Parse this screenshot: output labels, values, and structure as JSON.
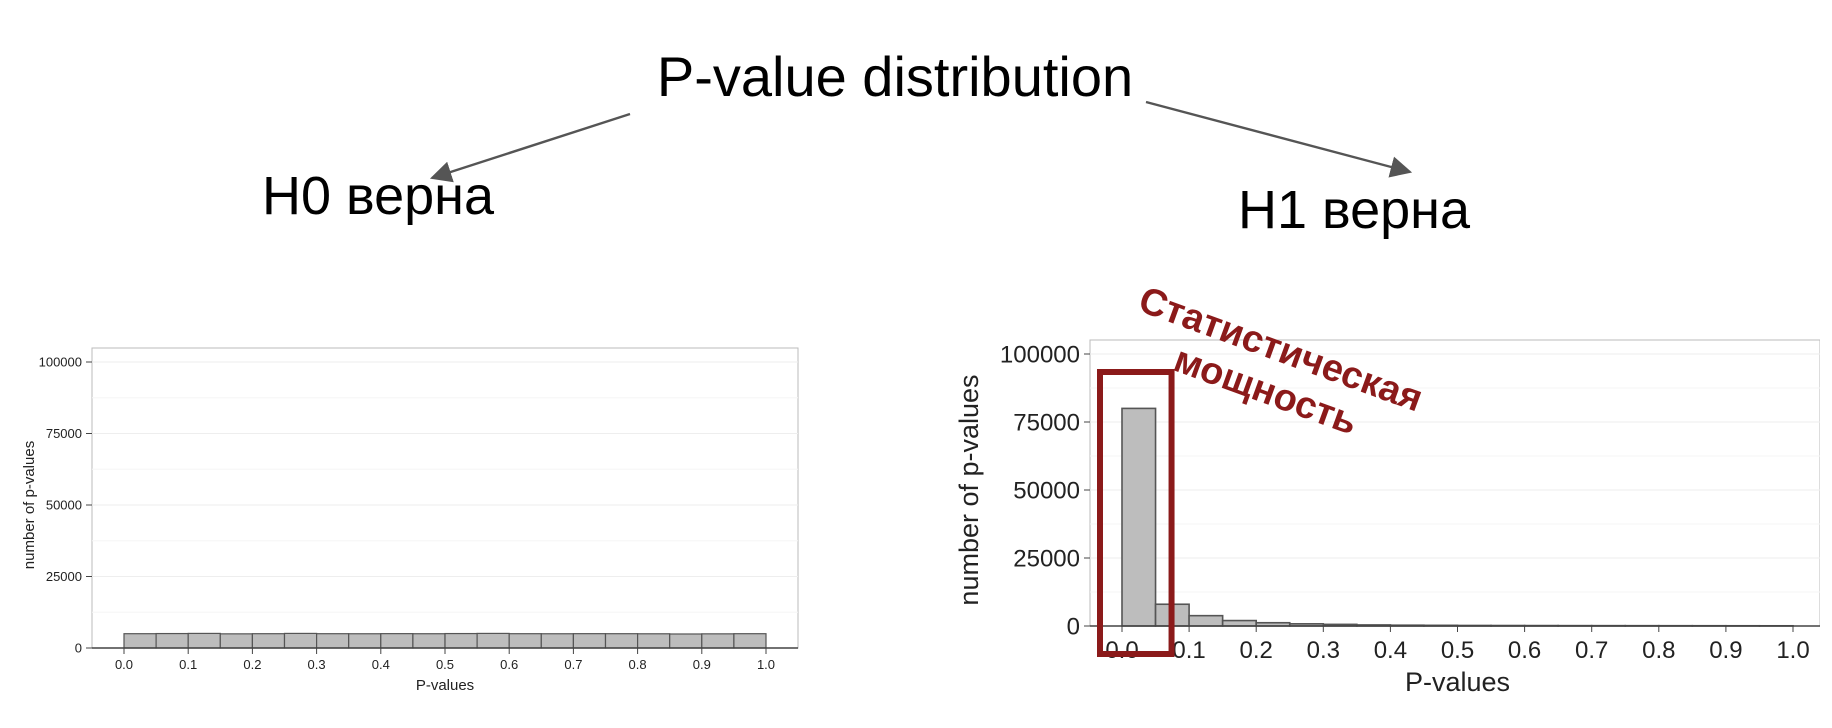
{
  "title": "P-value distribution",
  "h0_label": "H0 верна",
  "h1_label": "H1 верна",
  "annotation": {
    "line1": "Статистическая",
    "line2": "мощность",
    "color": "#8b1a1a"
  },
  "chart_data": [
    {
      "type": "bar",
      "xlabel": "P-values",
      "ylabel": "number of p-values",
      "xlim": [
        0.0,
        1.0
      ],
      "ylim": [
        0,
        100000
      ],
      "bin_width": 0.05,
      "x_ticks": [
        "0.0",
        "0.1",
        "0.2",
        "0.3",
        "0.4",
        "0.5",
        "0.6",
        "0.7",
        "0.8",
        "0.9",
        "1.0"
      ],
      "y_ticks": [
        "0",
        "25000",
        "50000",
        "75000",
        "100000"
      ],
      "bin_starts": [
        0.0,
        0.05,
        0.1,
        0.15,
        0.2,
        0.25,
        0.3,
        0.35,
        0.4,
        0.45,
        0.5,
        0.55,
        0.6,
        0.65,
        0.7,
        0.75,
        0.8,
        0.85,
        0.9,
        0.95
      ],
      "values": [
        5000,
        5050,
        5100,
        4950,
        5000,
        5100,
        5000,
        4980,
        5020,
        4990,
        5050,
        5100,
        5000,
        4980,
        5010,
        5000,
        4970,
        4900,
        4950,
        5000
      ],
      "bar_color": "#bdbdbd",
      "grid": true
    },
    {
      "type": "bar",
      "xlabel": "P-values",
      "ylabel": "number of p-values",
      "xlim": [
        0.0,
        1.0
      ],
      "ylim": [
        0,
        100000
      ],
      "bin_width": 0.05,
      "x_ticks": [
        "0.0",
        "0.1",
        "0.2",
        "0.3",
        "0.4",
        "0.5",
        "0.6",
        "0.7",
        "0.8",
        "0.9",
        "1.0"
      ],
      "y_ticks": [
        "0",
        "25000",
        "50000",
        "75000",
        "100000"
      ],
      "bin_starts": [
        0.0,
        0.05,
        0.1,
        0.15,
        0.2,
        0.25,
        0.3,
        0.35,
        0.4,
        0.45,
        0.5,
        0.55,
        0.6,
        0.65,
        0.7,
        0.75,
        0.8,
        0.85,
        0.9,
        0.95
      ],
      "values": [
        80000,
        8000,
        3800,
        2000,
        1200,
        800,
        600,
        400,
        300,
        250,
        200,
        180,
        160,
        140,
        130,
        120,
        110,
        100,
        90,
        80
      ],
      "bar_color": "#bdbdbd",
      "highlight": {
        "x_range": [
          0.0,
          0.05
        ],
        "color": "#8b1a1a"
      },
      "grid": true
    }
  ]
}
